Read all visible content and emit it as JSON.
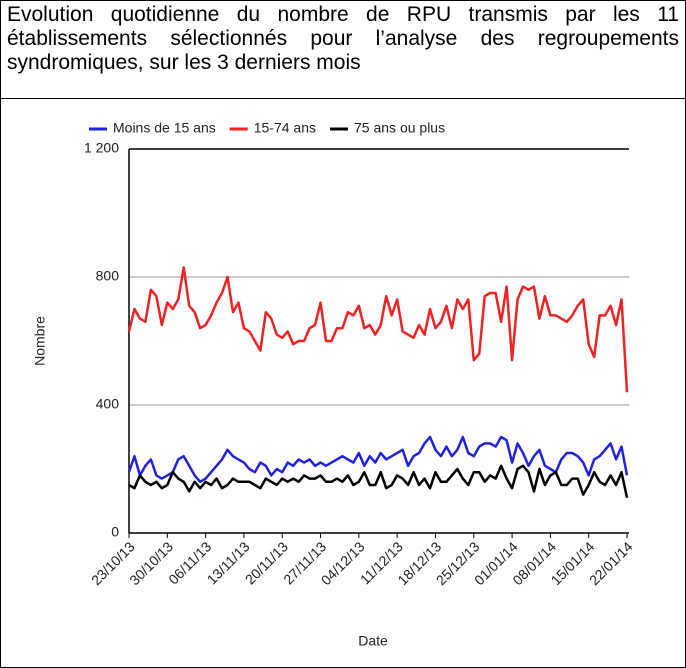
{
  "chart_data": {
    "type": "line",
    "title": "Evolution quotidienne du nombre de RPU transmis par les 11 établissements sélectionnés pour l’analyse des regroupements syndromiques, sur les 3 derniers mois",
    "x_label": "Date",
    "y_label": "Nombre",
    "categories": [
      "23/10/13",
      null,
      null,
      null,
      null,
      null,
      null,
      "30/10/13",
      null,
      null,
      null,
      null,
      null,
      null,
      "06/11/13",
      null,
      null,
      null,
      null,
      null,
      null,
      "13/11/13",
      null,
      null,
      null,
      null,
      null,
      null,
      "20/11/13",
      null,
      null,
      null,
      null,
      null,
      null,
      "27/11/13",
      null,
      null,
      null,
      null,
      null,
      null,
      "04/12/13",
      null,
      null,
      null,
      null,
      null,
      null,
      "11/12/13",
      null,
      null,
      null,
      null,
      null,
      null,
      "18/12/13",
      null,
      null,
      null,
      null,
      null,
      null,
      "25/12/13",
      null,
      null,
      null,
      null,
      null,
      null,
      "01/01/14",
      null,
      null,
      null,
      null,
      null,
      null,
      "08/01/14",
      null,
      null,
      null,
      null,
      null,
      null,
      "15/01/14",
      null,
      null,
      null,
      null,
      null,
      null,
      "22/01/14"
    ],
    "series": [
      {
        "name": "Moins de 15 ans",
        "color": "#2222dd",
        "values": [
          190,
          240,
          180,
          210,
          230,
          180,
          170,
          180,
          190,
          230,
          240,
          210,
          180,
          160,
          170,
          190,
          210,
          230,
          260,
          240,
          230,
          220,
          200,
          190,
          220,
          210,
          180,
          200,
          190,
          220,
          210,
          230,
          220,
          230,
          210,
          220,
          210,
          220,
          230,
          240,
          230,
          220,
          250,
          210,
          240,
          220,
          250,
          230,
          240,
          250,
          260,
          210,
          240,
          250,
          280,
          300,
          260,
          240,
          270,
          240,
          260,
          300,
          250,
          240,
          270,
          280,
          280,
          270,
          300,
          290,
          220,
          280,
          250,
          210,
          240,
          260,
          210,
          200,
          190,
          230,
          250,
          250,
          240,
          220,
          180,
          230,
          240,
          260,
          280,
          230,
          270,
          180
        ]
      },
      {
        "name": "15-74 ans",
        "color": "#ee2222",
        "values": [
          630,
          700,
          670,
          660,
          760,
          740,
          650,
          720,
          700,
          730,
          830,
          710,
          690,
          640,
          650,
          680,
          720,
          750,
          800,
          690,
          720,
          640,
          630,
          600,
          570,
          690,
          670,
          620,
          610,
          630,
          590,
          600,
          600,
          640,
          650,
          720,
          600,
          600,
          640,
          640,
          690,
          680,
          710,
          640,
          650,
          620,
          650,
          740,
          680,
          730,
          630,
          620,
          610,
          650,
          620,
          700,
          640,
          660,
          710,
          640,
          730,
          700,
          730,
          540,
          560,
          740,
          750,
          750,
          660,
          770,
          540,
          730,
          770,
          760,
          770,
          670,
          740,
          680,
          680,
          670,
          660,
          680,
          710,
          730,
          590,
          550,
          680,
          680,
          710,
          650,
          730,
          440
        ]
      },
      {
        "name": "75 ans ou plus",
        "color": "#000000",
        "values": [
          150,
          140,
          180,
          160,
          150,
          160,
          140,
          150,
          190,
          170,
          160,
          130,
          160,
          140,
          160,
          150,
          170,
          140,
          150,
          170,
          160,
          160,
          160,
          150,
          140,
          170,
          160,
          150,
          170,
          160,
          170,
          160,
          180,
          170,
          170,
          180,
          160,
          160,
          170,
          160,
          180,
          150,
          160,
          190,
          150,
          150,
          190,
          140,
          150,
          180,
          170,
          150,
          190,
          150,
          170,
          140,
          190,
          160,
          160,
          180,
          200,
          170,
          150,
          190,
          190,
          160,
          180,
          170,
          210,
          170,
          140,
          200,
          210,
          190,
          130,
          200,
          150,
          180,
          190,
          150,
          150,
          170,
          170,
          120,
          150,
          190,
          160,
          150,
          180,
          150,
          190,
          110
        ]
      }
    ],
    "ylim": [
      0,
      1200
    ],
    "yticks": [
      0,
      400,
      800,
      {
        "value": 1200,
        "label": "1 200"
      }
    ],
    "grid": true,
    "legend": "top"
  }
}
